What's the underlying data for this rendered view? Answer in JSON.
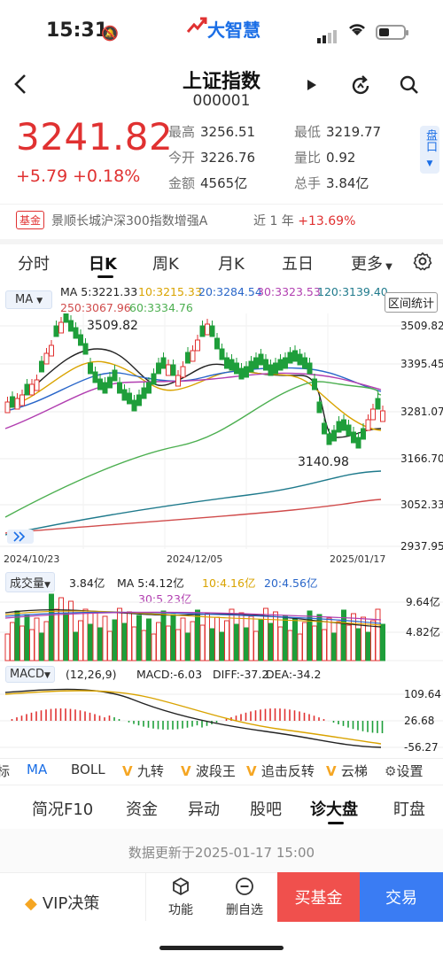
{
  "status": {
    "time": "15:31"
  },
  "app": {
    "logo": "大智慧"
  },
  "header": {
    "title": "上证指数",
    "code": "000001"
  },
  "quote": {
    "price": "3241.82",
    "change": "+5.79",
    "change_pct": "+0.18%",
    "high_label": "最高",
    "high": "3256.51",
    "low_label": "最低",
    "low": "3219.77",
    "open_label": "今开",
    "open": "3226.76",
    "volratio_label": "量比",
    "volratio": "0.92",
    "amount_label": "金额",
    "amount": "4565亿",
    "volume_label": "总手",
    "volume": "3.84亿",
    "side_tag": "盘口"
  },
  "fund": {
    "tag": "基金",
    "name": "景顺长城沪深300指数增强A",
    "period": "近 1 年",
    "return": "+13.69%"
  },
  "tabs": [
    "分时",
    "日K",
    "周K",
    "月K",
    "五日",
    "更多"
  ],
  "ma_legend": {
    "chip": "MA",
    "ma5": "MA 5:3221.33",
    "ma10": "10:3215.33",
    "ma20": "20:3284.54",
    "ma30": "30:3323.53",
    "ma120": "120:3139.40",
    "ma250": "250:3067.96",
    "ma60": "60:3334.76",
    "range_btn": "区间统计"
  },
  "price_axis": [
    "3509.82",
    "3395.45",
    "3281.07",
    "3166.70",
    "3052.33",
    "2937.95"
  ],
  "annotations": {
    "high": "3509.82",
    "low": "3140.98"
  },
  "dates": [
    "2024/10/23",
    "2024/12/05",
    "2025/01/17"
  ],
  "volume": {
    "chip": "成交量",
    "value": "3.84亿",
    "ma5": "MA 5:4.12亿",
    "ma10": "10:4.16亿",
    "ma20": "20:4.56亿",
    "ma30": "30:5.23亿",
    "axis": [
      "9.64亿",
      "4.82亿"
    ]
  },
  "macd": {
    "chip": "MACD",
    "params": "(12,26,9)",
    "macd": "MACD:-6.03",
    "diff": "DIFF:-37.2",
    "dea": "DEA:-34.2",
    "axis": [
      "109.64",
      "26.68",
      "-56.27"
    ]
  },
  "indicators": [
    "标",
    "MA",
    "BOLL",
    "九转",
    "波段王",
    "追击反转",
    "云梯",
    "设置"
  ],
  "sub_tabs": [
    "简况F10",
    "资金",
    "异动",
    "股吧",
    "诊大盘",
    "盯盘"
  ],
  "updated": "数据更新于2025-01-17 15:00",
  "bottom": {
    "vip": "VIP决策",
    "func": "功能",
    "del": "删自选",
    "buy": "买基金",
    "trade": "交易"
  },
  "colors": {
    "up": "#e03131",
    "down": "#1e9e3a",
    "accent": "#1a6ee6"
  }
}
